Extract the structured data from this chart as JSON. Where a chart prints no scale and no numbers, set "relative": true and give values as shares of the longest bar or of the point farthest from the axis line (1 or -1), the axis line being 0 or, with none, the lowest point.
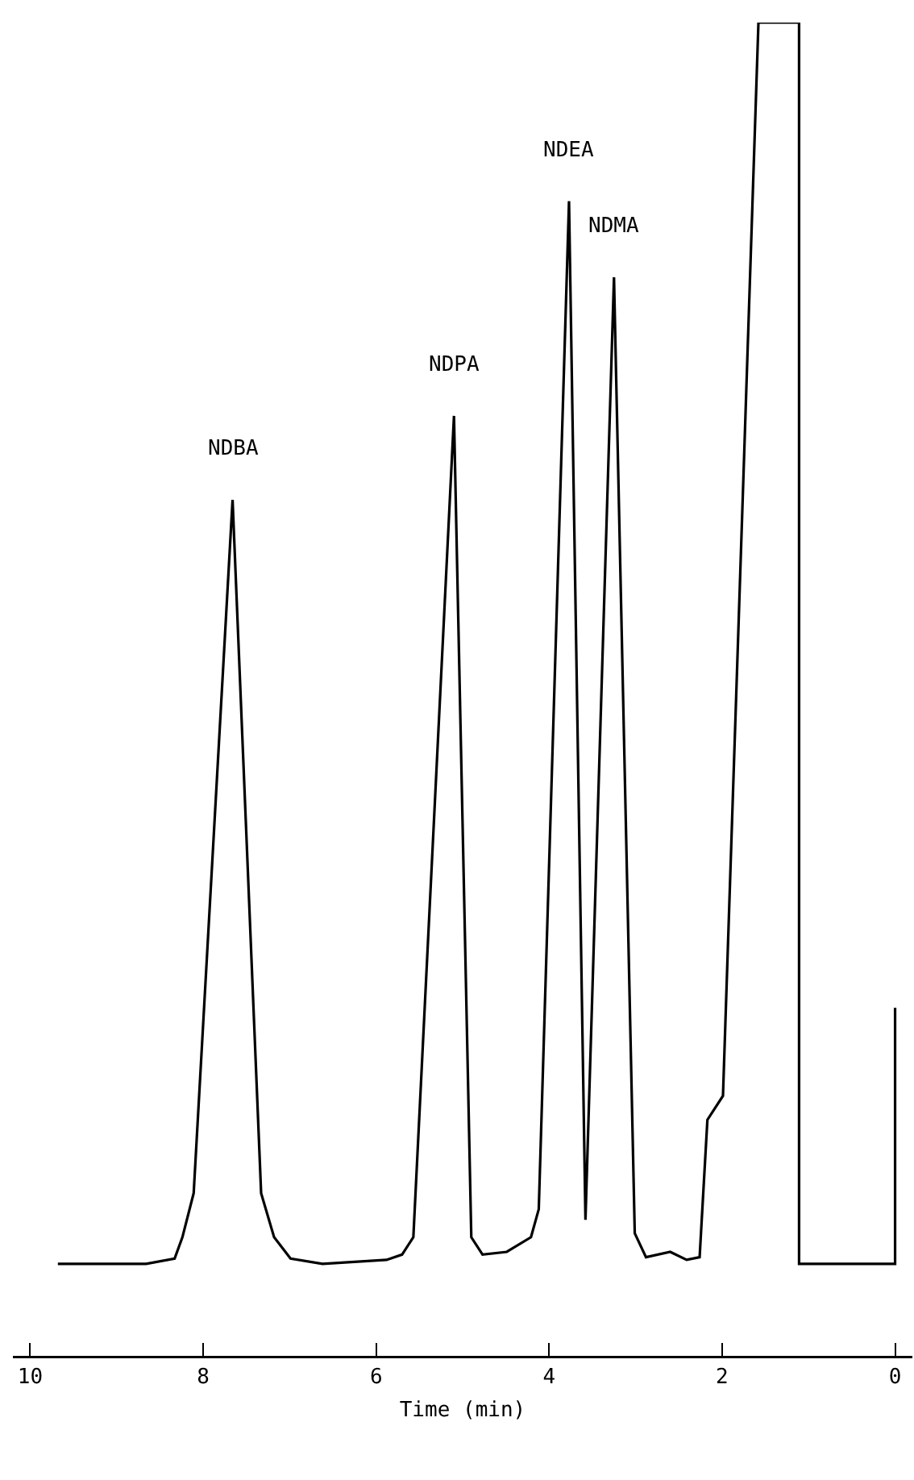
{
  "chart_data": {
    "type": "line",
    "relative": true,
    "xlabel": "Time (min)",
    "xlim": [
      10.2,
      -0.2
    ],
    "xticks": [
      10,
      8,
      6,
      4,
      2,
      0
    ],
    "x": [
      9.68,
      8.66,
      8.33,
      8.24,
      8.11,
      7.66,
      7.33,
      7.18,
      6.99,
      6.62,
      5.88,
      5.7,
      5.57,
      5.1,
      4.9,
      4.77,
      4.49,
      4.21,
      4.12,
      3.77,
      3.58,
      3.25,
      3.01,
      2.88,
      2.6,
      2.41,
      2.26,
      2.17,
      1.99,
      1.58,
      1.11,
      1.11,
      0,
      0
    ],
    "series": [
      {
        "color": "#000000",
        "values": [
          0.069,
          0.069,
          0.073,
          0.089,
          0.122,
          0.642,
          0.122,
          0.089,
          0.073,
          0.069,
          0.072,
          0.076,
          0.089,
          0.705,
          0.089,
          0.076,
          0.078,
          0.089,
          0.11,
          0.866,
          0.102,
          0.809,
          0.092,
          0.074,
          0.078,
          0.072,
          0.074,
          0.177,
          0.195,
          1,
          1,
          0.069,
          0.069,
          0.261
        ]
      }
    ],
    "annotations": [
      {
        "text": "NDBA",
        "x": 7.66,
        "y": 0.642
      },
      {
        "text": "NDPA",
        "x": 5.1,
        "y": 0.705
      },
      {
        "text": "NDEA",
        "x": 3.77,
        "y": 0.866
      },
      {
        "text": "NDMA",
        "x": 3.25,
        "y": 0.809
      }
    ]
  }
}
